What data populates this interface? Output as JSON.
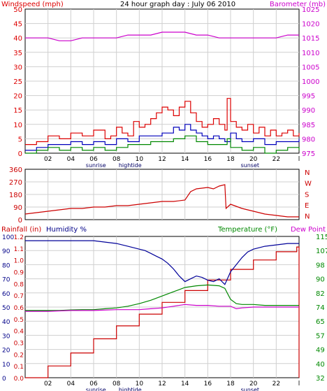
{
  "colors": {
    "wind": "#dd0000",
    "baro": "#cc00cc",
    "avgwind": "#0000bb",
    "gust": "#dd0000",
    "dir": "#cc0000",
    "rain": "#cc0000",
    "humidity": "#000099",
    "temp": "#008800",
    "dew": "#cc00cc",
    "grid": "#cfcfcf",
    "frame": "#000000"
  },
  "chart_data": [
    {
      "type": "line",
      "title": "24 hour graph day : July 06 2010",
      "ylabel": "Windspeed (mph)",
      "y2label": "Barometer (mb)",
      "ylim": [
        0,
        50
      ],
      "y2lim": [
        975,
        1025
      ],
      "yticks": [
        "0",
        "5",
        "10",
        "15",
        "20",
        "25",
        "30",
        "35",
        "40",
        "45",
        "50"
      ],
      "y2ticks": [
        "975",
        "980",
        "985",
        "990",
        "995",
        "1000",
        "1005",
        "1010",
        "1015",
        "1020",
        "1025"
      ],
      "xlim": [
        0,
        24
      ],
      "xticks": [
        "02",
        "04",
        "06",
        "08",
        "10",
        "12",
        "14",
        "16",
        "18",
        "20",
        "22"
      ],
      "end_tick": "l",
      "sun_labels": [
        "sunrise",
        "hightide",
        "sunset"
      ],
      "grid": true,
      "series": [
        {
          "name": "gust",
          "axis": "left",
          "x": [
            0,
            1,
            2,
            3,
            4,
            5,
            6,
            7,
            7.5,
            8,
            8.5,
            9,
            9.5,
            10,
            10.5,
            11,
            11.5,
            12,
            12.5,
            13,
            13.5,
            14,
            14.5,
            15,
            15.5,
            16,
            16.5,
            17,
            17.5,
            17.7,
            18,
            18.5,
            19,
            19.5,
            20,
            20.5,
            21,
            21.5,
            22,
            22.5,
            23,
            23.5,
            24
          ],
          "values": [
            3,
            4,
            6,
            5,
            7,
            6,
            8,
            5,
            6,
            9,
            7,
            6,
            11,
            9,
            10,
            12,
            14,
            16,
            15,
            13,
            16,
            18,
            14,
            11,
            9,
            10,
            12,
            10,
            8,
            19,
            11,
            9,
            8,
            10,
            7,
            9,
            6,
            8,
            6,
            7,
            8,
            6,
            7
          ]
        },
        {
          "name": "avg",
          "axis": "left",
          "x": [
            0,
            1,
            2,
            3,
            4,
            5,
            6,
            7,
            8,
            9,
            10,
            11,
            12,
            12.5,
            13,
            13.5,
            14,
            14.5,
            15,
            15.5,
            16,
            16.5,
            17,
            17.5,
            18,
            18.5,
            19,
            20,
            21,
            22,
            23,
            24
          ],
          "values": [
            1,
            2,
            3,
            3,
            4,
            3,
            4,
            3,
            5,
            4,
            6,
            6,
            7,
            7,
            9,
            8,
            10,
            8,
            7,
            6,
            5,
            6,
            5,
            4,
            7,
            5,
            4,
            5,
            3,
            4,
            4,
            5
          ]
        },
        {
          "name": "low",
          "axis": "left",
          "x": [
            0,
            1,
            2,
            3,
            4,
            5,
            6,
            7,
            8,
            9,
            10,
            11,
            12,
            13,
            14,
            15,
            16,
            17,
            17.7,
            18,
            19,
            20,
            21,
            22,
            23,
            24
          ],
          "values": [
            0,
            1,
            2,
            1,
            2,
            1,
            2,
            1,
            2,
            3,
            3,
            4,
            4,
            5,
            6,
            4,
            3,
            3,
            5,
            2,
            1,
            2,
            0,
            1,
            2,
            1
          ]
        },
        {
          "name": "barometer",
          "axis": "right",
          "x": [
            0,
            1,
            2,
            3,
            4,
            5,
            6,
            7,
            8,
            9,
            10,
            11,
            12,
            13,
            14,
            15,
            16,
            17,
            18,
            19,
            20,
            21,
            22,
            23,
            24
          ],
          "values": [
            1015,
            1015,
            1015,
            1014,
            1014,
            1015,
            1015,
            1015,
            1015,
            1016,
            1016,
            1016,
            1017,
            1017,
            1017,
            1016,
            1016,
            1015,
            1015,
            1015,
            1015,
            1015,
            1015,
            1016,
            1016
          ]
        }
      ]
    },
    {
      "type": "line",
      "ylim": [
        0,
        360
      ],
      "yticks": [
        "0",
        "90",
        "180",
        "270",
        "360"
      ],
      "compass": [
        "N",
        "W",
        "S",
        "E",
        "N"
      ],
      "xlim": [
        0,
        24
      ],
      "grid": true,
      "series": [
        {
          "name": "direction",
          "x": [
            0,
            1,
            2,
            3,
            4,
            5,
            6,
            7,
            8,
            9,
            10,
            11,
            12,
            13,
            14,
            14.5,
            15,
            16,
            16.5,
            17,
            17.5,
            17.6,
            18,
            19,
            20,
            21,
            22,
            23,
            24
          ],
          "values": [
            40,
            50,
            60,
            70,
            80,
            80,
            90,
            90,
            100,
            100,
            110,
            120,
            130,
            130,
            140,
            200,
            220,
            230,
            220,
            240,
            250,
            80,
            110,
            80,
            60,
            40,
            30,
            20,
            20
          ]
        }
      ]
    },
    {
      "type": "line",
      "ylabel": "Rainfall (in)",
      "y1label": "Humidity %",
      "y2label": "Temperature (°F)",
      "y3label": "Dew Point",
      "ylim": [
        0,
        100
      ],
      "yticks": [
        "0",
        "10",
        "20",
        "30",
        "40",
        "50",
        "60",
        "70",
        "80",
        "90",
        "100"
      ],
      "rainticks": [
        "0.0",
        "0.1",
        "0.2",
        "0.3",
        "0.4",
        "0.5",
        "0.6",
        "0.7",
        "0.8",
        "0.9",
        "1.0",
        "1.1",
        "1.2"
      ],
      "templim": [
        32,
        115
      ],
      "tempticks": [
        "32",
        "40",
        "49",
        "57",
        "65",
        "74",
        "82",
        "90",
        "98",
        "107",
        "115"
      ],
      "xlim": [
        0,
        24
      ],
      "grid": true,
      "series": [
        {
          "name": "rain",
          "axis": "rain",
          "x": [
            0,
            2,
            4,
            6,
            8,
            10,
            12,
            14,
            16,
            18,
            20,
            22,
            23.8,
            24
          ],
          "values": [
            0.0,
            0.1,
            0.21,
            0.33,
            0.44,
            0.54,
            0.64,
            0.74,
            0.83,
            0.92,
            1.0,
            1.07,
            1.11,
            0
          ]
        },
        {
          "name": "humidity",
          "axis": "left",
          "x": [
            0,
            1,
            2,
            3,
            4,
            5,
            6,
            7,
            8,
            9,
            10,
            10.5,
            11,
            11.5,
            12,
            12.5,
            13,
            13.5,
            14,
            14.5,
            15,
            15.5,
            16,
            16.5,
            17,
            17.5,
            18,
            18.5,
            19,
            19.5,
            20,
            21,
            22,
            23,
            24
          ],
          "values": [
            97,
            97,
            97,
            97,
            97,
            97,
            97,
            96,
            95,
            93,
            91,
            90,
            88,
            86,
            84,
            81,
            77,
            72,
            68,
            70,
            72,
            71,
            69,
            68,
            70,
            66,
            75,
            80,
            85,
            89,
            91,
            93,
            94,
            95,
            95
          ]
        },
        {
          "name": "temperature",
          "axis": "temp",
          "x": [
            0,
            1,
            2,
            3,
            4,
            5,
            6,
            7,
            8,
            9,
            10,
            11,
            12,
            13,
            14,
            15,
            16,
            17,
            17.5,
            18,
            18.5,
            19,
            20,
            21,
            22,
            23,
            24
          ],
          "values": [
            71.5,
            71.5,
            71.5,
            71.5,
            71.8,
            72,
            72,
            72.5,
            73,
            74,
            75.5,
            77.5,
            80,
            82.5,
            85,
            86,
            86.5,
            86,
            84.5,
            78,
            75.5,
            75,
            75,
            74.5,
            74.5,
            74.5,
            74.5
          ]
        },
        {
          "name": "dewpoint",
          "axis": "temp",
          "x": [
            0,
            2,
            4,
            6,
            8,
            10,
            11,
            12,
            13,
            14,
            15,
            16,
            17,
            18,
            18.5,
            19,
            20,
            21,
            22,
            23,
            24
          ],
          "values": [
            71,
            71,
            71.5,
            71.5,
            72,
            72,
            72.5,
            73,
            74,
            75,
            74.5,
            74.5,
            74,
            74,
            72.5,
            73,
            73.5,
            73.5,
            73.5,
            73.5,
            73.5
          ]
        }
      ]
    }
  ]
}
